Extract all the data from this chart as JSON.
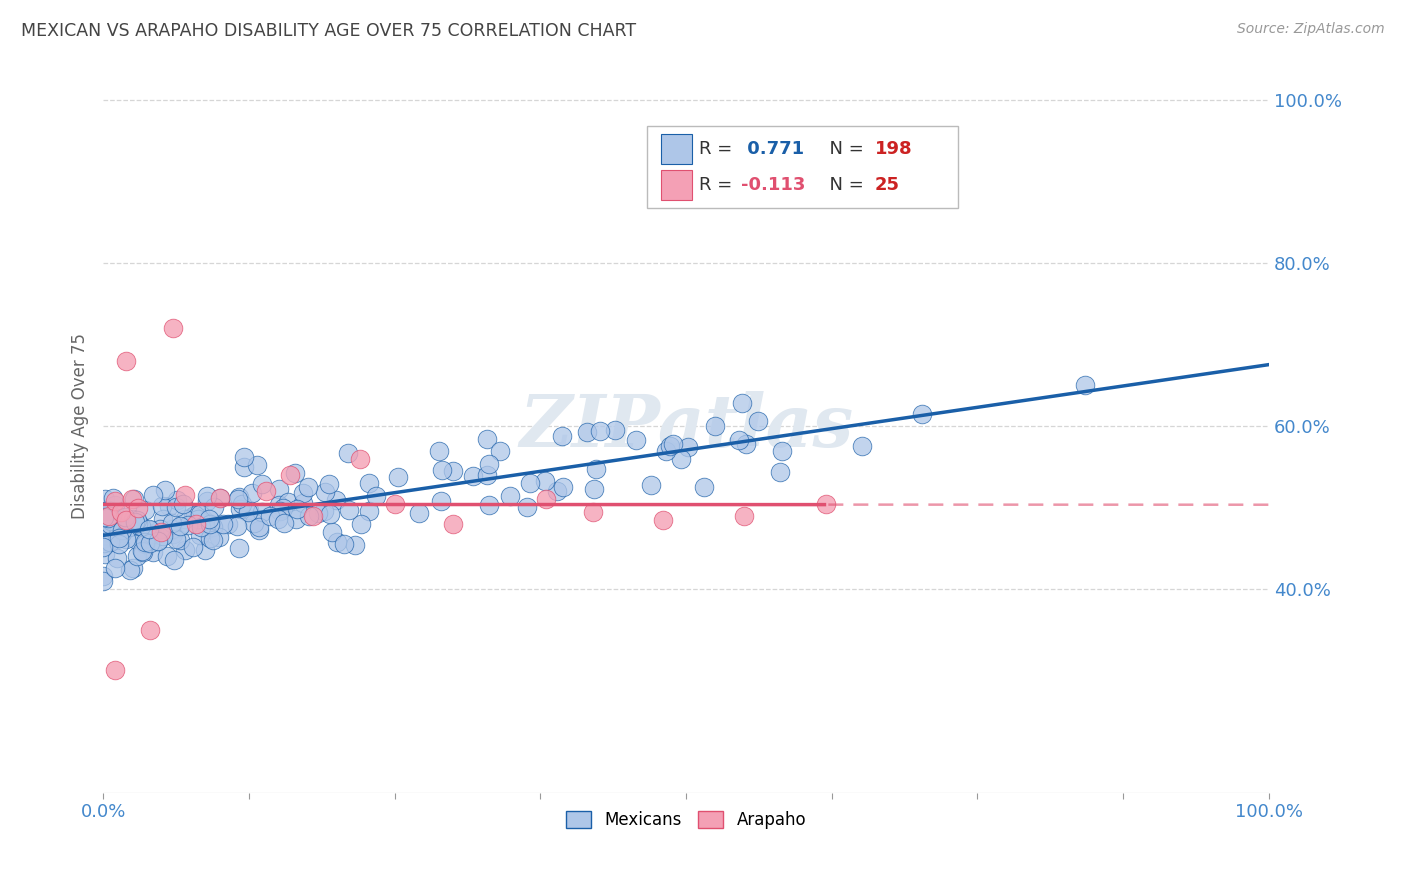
{
  "title": "MEXICAN VS ARAPAHO DISABILITY AGE OVER 75 CORRELATION CHART",
  "source": "Source: ZipAtlas.com",
  "ylabel": "Disability Age Over 75",
  "watermark": "ZIPatlas",
  "mexican_R": 0.771,
  "mexican_N": 198,
  "arapaho_R": -0.113,
  "arapaho_N": 25,
  "mexican_color": "#aec6e8",
  "arapaho_color": "#f4a0b5",
  "mexican_line_color": "#1a5fa8",
  "arapaho_line_color": "#e05070",
  "background_color": "#ffffff",
  "grid_color": "#cccccc",
  "title_color": "#444444",
  "right_tick_color": "#4488cc",
  "legend_N_color": "#cc2222",
  "ytick_values": [
    0.4,
    0.6,
    0.8,
    1.0
  ],
  "ylim_low": 0.15,
  "ylim_high": 1.05,
  "xlim_low": 0.0,
  "xlim_high": 1.0
}
